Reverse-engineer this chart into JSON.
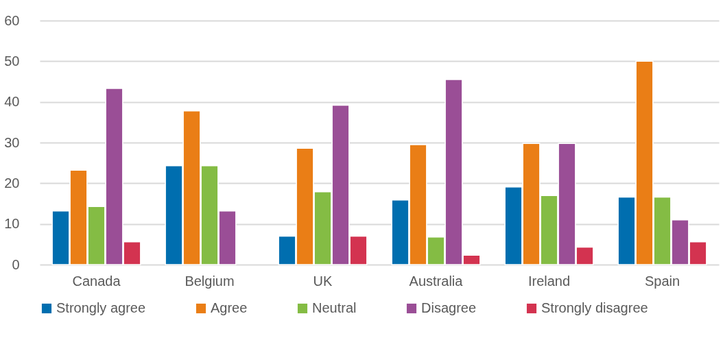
{
  "chart_data": {
    "type": "bar",
    "categories": [
      "Canada",
      "Belgium",
      "UK",
      "Australia",
      "Ireland",
      "Spain"
    ],
    "series": [
      {
        "name": "Strongly agree",
        "color": "#006eaf",
        "values": [
          13.2,
          24.3,
          7.0,
          15.9,
          19.1,
          16.6
        ]
      },
      {
        "name": "Agree",
        "color": "#ea7e16",
        "values": [
          23.2,
          37.8,
          28.6,
          29.5,
          29.8,
          50.0
        ]
      },
      {
        "name": "Neutral",
        "color": "#84bc44",
        "values": [
          14.3,
          24.3,
          17.9,
          6.8,
          17.0,
          16.6
        ]
      },
      {
        "name": "Disagree",
        "color": "#9a4e96",
        "values": [
          43.3,
          13.2,
          39.2,
          45.5,
          29.8,
          11.0
        ]
      },
      {
        "name": "Strongly disagree",
        "color": "#d33350",
        "values": [
          5.6,
          null,
          7.0,
          2.3,
          4.3,
          5.6
        ]
      }
    ],
    "ylim": [
      0,
      60
    ],
    "yticks": [
      0,
      10,
      20,
      30,
      40,
      50,
      60
    ],
    "grid": "y",
    "legend": "bottom"
  }
}
